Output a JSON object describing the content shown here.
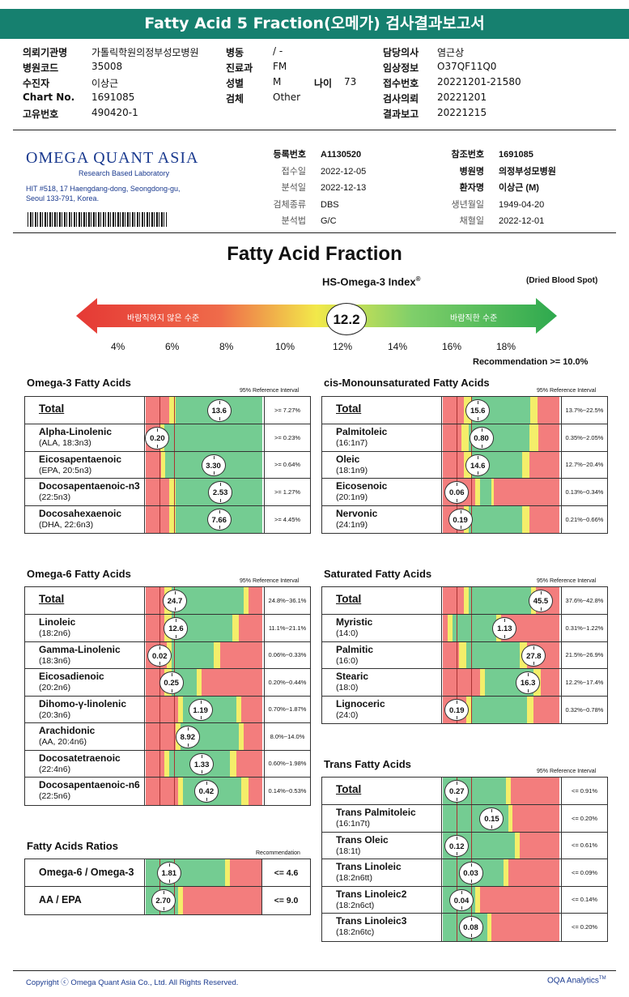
{
  "title": "Fatty Acid 5 Fraction(오메가) 검사결과보고서",
  "header": [
    {
      "k": "의뢰기관명",
      "v": "가톨릭학원의정부성모병원",
      "k2": "병동",
      "v2": "/ -",
      "k3": "담당의사",
      "v3": "염근상"
    },
    {
      "k": "병원코드",
      "v": "35008",
      "k2": "진료과",
      "v2": "FM",
      "k3": "임상정보",
      "v3": "O37QF11Q0"
    },
    {
      "k": "수진자",
      "v": "이상근",
      "k2": "성별",
      "v2": "M",
      "k2b": "나이",
      "v2b": "73",
      "k3": "접수번호",
      "v3": "20221201-21580"
    },
    {
      "k": "Chart No.",
      "v": "1691085",
      "k2": "검체",
      "v2": "Other",
      "k3": "검사의뢰",
      "v3": "20221201"
    },
    {
      "k": "고유번호",
      "v": "490420-1",
      "k2": "",
      "v2": "",
      "k3": "결과보고",
      "v3": "20221215"
    }
  ],
  "lab": {
    "logo": "OMEGA QUANT ASIA",
    "sub": "Research Based Laboratory",
    "addr1": "HIT #518, 17 Haengdang-dong, Seongdong-gu,",
    "addr2": "Seoul 133-791, Korea.",
    "mid": [
      {
        "k": "등록번호",
        "v": "A1130520"
      },
      {
        "k": "접수일",
        "v": "2022-12-05"
      },
      {
        "k": "분석일",
        "v": "2022-12-13"
      },
      {
        "k": "검체종류",
        "v": "DBS"
      },
      {
        "k": "분석법",
        "v": "G/C"
      }
    ],
    "right": [
      {
        "k": "참조번호",
        "v": "1691085"
      },
      {
        "k": "병원명",
        "v": "의정부성모병원"
      },
      {
        "k": "환자명",
        "v": "이상근 (M)"
      },
      {
        "k": "생년월일",
        "v": "1949-04-20"
      },
      {
        "k": "채혈일",
        "v": "2022-12-01"
      }
    ]
  },
  "main_title": "Fatty Acid Fraction",
  "index": {
    "label": "HS-Omega-3 Index",
    "reg": "®",
    "sample": "(Dried Blood Spot)",
    "value": "12.2",
    "bad": "바람직하지 않은 수준",
    "good": "바람직한 수준",
    "ticks": [
      "4%",
      "6%",
      "8%",
      "10%",
      "12%",
      "14%",
      "16%",
      "18%"
    ],
    "rec": "Recommendation  >= 10.0%"
  },
  "ref_label": "95% Reference Interval",
  "rec_label": "Recommendation",
  "panels": [
    {
      "title": "Omega-3 Fatty Acids",
      "rows": [
        {
          "n": "Total",
          "s": "",
          "v": "13.6",
          "r": ">= 7.27%",
          "pos": 0.63,
          "z": [
            [
              "r",
              0,
              0.2
            ],
            [
              "y",
              0.2,
              0.26
            ],
            [
              "g",
              0.26,
              1
            ]
          ]
        },
        {
          "n": "Alpha-Linolenic",
          "s": "(ALA, 18:3n3)",
          "v": "0.20",
          "r": ">= 0.23%",
          "pos": 0.1,
          "z": [
            [
              "r",
              0,
              0.12
            ],
            [
              "y",
              0.12,
              0.16
            ],
            [
              "g",
              0.16,
              1
            ]
          ]
        },
        {
          "n": "Eicosapentaenoic",
          "s": "(EPA, 20:5n3)",
          "v": "3.30",
          "r": ">= 0.64%",
          "pos": 0.58,
          "z": [
            [
              "r",
              0,
              0.13
            ],
            [
              "y",
              0.13,
              0.17
            ],
            [
              "g",
              0.17,
              1
            ]
          ]
        },
        {
          "n": "Docosapentaenoic-n3",
          "s": "(22:5n3)",
          "v": "2.53",
          "r": ">= 1.27%",
          "pos": 0.64,
          "z": [
            [
              "r",
              0,
              0.2
            ],
            [
              "y",
              0.2,
              0.26
            ],
            [
              "g",
              0.26,
              1
            ]
          ]
        },
        {
          "n": "Docosahexaenoic",
          "s": "(DHA, 22:6n3)",
          "v": "7.66",
          "r": ">= 4.45%",
          "pos": 0.63,
          "z": [
            [
              "r",
              0,
              0.2
            ],
            [
              "y",
              0.2,
              0.26
            ],
            [
              "g",
              0.26,
              1
            ]
          ]
        }
      ]
    },
    {
      "title": "cis-Monounsaturated Fatty Acids",
      "rows": [
        {
          "n": "Total",
          "s": "",
          "v": "15.6",
          "r": "13.7%~22.5%",
          "pos": 0.3,
          "z": [
            [
              "r",
              0,
              0.18
            ],
            [
              "y",
              0.18,
              0.24
            ],
            [
              "g",
              0.24,
              0.75
            ],
            [
              "y",
              0.75,
              0.81
            ],
            [
              "r",
              0.81,
              1
            ]
          ]
        },
        {
          "n": "Palmitoleic",
          "s": "(16:1n7)",
          "v": "0.80",
          "r": "0.35%~2.05%",
          "pos": 0.33,
          "z": [
            [
              "r",
              0,
              0.16
            ],
            [
              "y",
              0.16,
              0.22
            ],
            [
              "g",
              0.22,
              0.74
            ],
            [
              "y",
              0.74,
              0.82
            ],
            [
              "r",
              0.82,
              1
            ]
          ]
        },
        {
          "n": "Oleic",
          "s": "(18:1n9)",
          "v": "14.6",
          "r": "12.7%~20.4%",
          "pos": 0.3,
          "z": [
            [
              "r",
              0,
              0.18
            ],
            [
              "y",
              0.18,
              0.24
            ],
            [
              "g",
              0.24,
              0.68
            ],
            [
              "y",
              0.68,
              0.74
            ],
            [
              "r",
              0.74,
              1
            ]
          ]
        },
        {
          "n": "Eicosenoic",
          "s": "(20:1n9)",
          "v": "0.06",
          "r": "0.13%~0.34%",
          "pos": 0.12,
          "z": [
            [
              "r",
              0,
              0.28
            ],
            [
              "y",
              0.28,
              0.32
            ],
            [
              "g",
              0.32,
              0.42
            ],
            [
              "y",
              0.42,
              0.44
            ],
            [
              "r",
              0.44,
              1
            ]
          ]
        },
        {
          "n": "Nervonic",
          "s": "(24:1n9)",
          "v": "0.19",
          "r": "0.21%~0.66%",
          "pos": 0.15,
          "z": [
            [
              "r",
              0,
              0.18
            ],
            [
              "y",
              0.18,
              0.22
            ],
            [
              "g",
              0.22,
              0.68
            ],
            [
              "y",
              0.68,
              0.74
            ],
            [
              "r",
              0.74,
              1
            ]
          ]
        }
      ]
    },
    {
      "title": "Omega-6 Fatty Acids",
      "rows": [
        {
          "n": "Total",
          "s": "",
          "v": "24.7",
          "r": "24.8%~36.1%",
          "pos": 0.25,
          "z": [
            [
              "r",
              0,
              0.16
            ],
            [
              "y",
              0.16,
              0.22
            ],
            [
              "g",
              0.22,
              0.84
            ],
            [
              "y",
              0.84,
              0.88
            ],
            [
              "r",
              0.88,
              1
            ]
          ]
        },
        {
          "n": "Linoleic",
          "s": "(18:2n6)",
          "v": "12.6",
          "r": "11.1%~21.1%",
          "pos": 0.26,
          "z": [
            [
              "r",
              0,
              0.16
            ],
            [
              "y",
              0.16,
              0.22
            ],
            [
              "g",
              0.22,
              0.74
            ],
            [
              "y",
              0.74,
              0.8
            ],
            [
              "r",
              0.8,
              1
            ]
          ]
        },
        {
          "n": "Gamma-Linolenic",
          "s": "(18:3n6)",
          "v": "0.02",
          "r": "0.06%~0.33%",
          "pos": 0.12,
          "z": [
            [
              "r",
              0,
              0.18
            ],
            [
              "y",
              0.18,
              0.22
            ],
            [
              "g",
              0.22,
              0.58
            ],
            [
              "y",
              0.58,
              0.64
            ],
            [
              "r",
              0.64,
              1
            ]
          ]
        },
        {
          "n": "Eicosadienoic",
          "s": "(20:2n6)",
          "v": "0.25",
          "r": "0.20%~0.44%",
          "pos": 0.22,
          "z": [
            [
              "r",
              0,
              0.16
            ],
            [
              "y",
              0.16,
              0.22
            ],
            [
              "g",
              0.22,
              0.44
            ],
            [
              "y",
              0.44,
              0.48
            ],
            [
              "r",
              0.48,
              1
            ]
          ]
        },
        {
          "n": "Dihomo-γ-linolenic",
          "s": "(20:3n6)",
          "v": "1.19",
          "r": "0.70%~1.87%",
          "pos": 0.47,
          "z": [
            [
              "r",
              0,
              0.28
            ],
            [
              "y",
              0.28,
              0.32
            ],
            [
              "g",
              0.32,
              0.78
            ],
            [
              "y",
              0.78,
              0.82
            ],
            [
              "r",
              0.82,
              1
            ]
          ]
        },
        {
          "n": "Arachidonic",
          "s": "(AA, 20:4n6)",
          "v": "8.92",
          "r": "8.0%~14.0%",
          "pos": 0.36,
          "z": [
            [
              "r",
              0,
              0.26
            ],
            [
              "y",
              0.26,
              0.3
            ],
            [
              "g",
              0.3,
              0.8
            ],
            [
              "y",
              0.8,
              0.84
            ],
            [
              "r",
              0.84,
              1
            ]
          ]
        },
        {
          "n": "Docosatetraenoic",
          "s": "(22:4n6)",
          "v": "1.33",
          "r": "0.60%~1.98%",
          "pos": 0.48,
          "z": [
            [
              "r",
              0,
              0.16
            ],
            [
              "y",
              0.16,
              0.2
            ],
            [
              "g",
              0.2,
              0.72
            ],
            [
              "y",
              0.72,
              0.78
            ],
            [
              "r",
              0.78,
              1
            ]
          ]
        },
        {
          "n": "Docosapentaenoic-n6",
          "s": "(22:5n6)",
          "v": "0.42",
          "r": "0.14%~0.53%",
          "pos": 0.52,
          "z": [
            [
              "r",
              0,
              0.28
            ],
            [
              "y",
              0.28,
              0.32
            ],
            [
              "g",
              0.32,
              0.82
            ],
            [
              "y",
              0.82,
              0.88
            ],
            [
              "r",
              0.88,
              1
            ]
          ]
        }
      ]
    },
    {
      "title": "Saturated Fatty Acids",
      "rows": [
        {
          "n": "Total",
          "s": "",
          "v": "45.5",
          "r": "37.6%~42.8%",
          "pos": 0.84,
          "z": [
            [
              "r",
              0,
              0.18
            ],
            [
              "y",
              0.18,
              0.22
            ],
            [
              "g",
              0.22,
              0.76
            ],
            [
              "y",
              0.76,
              0.8
            ],
            [
              "r",
              0.8,
              1
            ]
          ]
        },
        {
          "n": "Myristic",
          "s": "(14:0)",
          "v": "1.13",
          "r": "0.31%~1.22%",
          "pos": 0.53,
          "z": [
            [
              "r",
              0,
              0.04
            ],
            [
              "y",
              0.04,
              0.08
            ],
            [
              "g",
              0.08,
              0.46
            ],
            [
              "y",
              0.46,
              0.5
            ],
            [
              "r",
              0.5,
              1
            ]
          ]
        },
        {
          "n": "Palmitic",
          "s": "(16:0)",
          "v": "27.8",
          "r": "21.5%~26.9%",
          "pos": 0.78,
          "z": [
            [
              "r",
              0,
              0.14
            ],
            [
              "y",
              0.14,
              0.2
            ],
            [
              "g",
              0.2,
              0.66
            ],
            [
              "y",
              0.66,
              0.72
            ],
            [
              "r",
              0.72,
              1
            ]
          ]
        },
        {
          "n": "Stearic",
          "s": "(18:0)",
          "v": "16.3",
          "r": "12.2%~17.4%",
          "pos": 0.73,
          "z": [
            [
              "r",
              0,
              0.32
            ],
            [
              "y",
              0.32,
              0.36
            ],
            [
              "g",
              0.36,
              0.78
            ],
            [
              "y",
              0.78,
              0.84
            ],
            [
              "r",
              0.84,
              1
            ]
          ]
        },
        {
          "n": "Lignoceric",
          "s": "(24:0)",
          "v": "0.19",
          "r": "0.32%~0.78%",
          "pos": 0.12,
          "z": [
            [
              "r",
              0,
              0.2
            ],
            [
              "y",
              0.2,
              0.24
            ],
            [
              "g",
              0.24,
              0.72
            ],
            [
              "y",
              0.72,
              0.78
            ],
            [
              "r",
              0.78,
              1
            ]
          ]
        }
      ]
    },
    {
      "title": "Trans Fatty Acids",
      "rows": [
        {
          "n": "Total",
          "s": "",
          "v": "0.27",
          "r": "<= 0.91%",
          "pos": 0.12,
          "z": [
            [
              "g",
              0,
              0.54
            ],
            [
              "y",
              0.54,
              0.58
            ],
            [
              "r",
              0.58,
              1
            ]
          ]
        },
        {
          "n": "Trans Palmitoleic",
          "s": "(16:1n7t)",
          "v": "0.15",
          "r": "<= 0.20%",
          "pos": 0.42,
          "z": [
            [
              "g",
              0,
              0.56
            ],
            [
              "y",
              0.56,
              0.6
            ],
            [
              "r",
              0.6,
              1
            ]
          ]
        },
        {
          "n": "Trans Oleic",
          "s": "(18:1t)",
          "v": "0.12",
          "r": "<= 0.61%",
          "pos": 0.12,
          "z": [
            [
              "g",
              0,
              0.62
            ],
            [
              "y",
              0.62,
              0.66
            ],
            [
              "r",
              0.66,
              1
            ]
          ]
        },
        {
          "n": "Trans Linoleic",
          "s": "(18:2n6tt)",
          "v": "0.03",
          "r": "<= 0.09%",
          "pos": 0.24,
          "z": [
            [
              "g",
              0,
              0.52
            ],
            [
              "y",
              0.52,
              0.56
            ],
            [
              "r",
              0.56,
              1
            ]
          ]
        },
        {
          "n": "Trans Linoleic2",
          "s": "(18:2n6ct)",
          "v": "0.04",
          "r": "<= 0.14%",
          "pos": 0.16,
          "z": [
            [
              "g",
              0,
              0.28
            ],
            [
              "y",
              0.28,
              0.32
            ],
            [
              "r",
              0.32,
              1
            ]
          ]
        },
        {
          "n": "Trans Linoleic3",
          "s": "(18:2n6tc)",
          "v": "0.08",
          "r": "<= 0.20%",
          "pos": 0.24,
          "z": [
            [
              "g",
              0,
              0.38
            ],
            [
              "y",
              0.38,
              0.42
            ],
            [
              "r",
              0.42,
              1
            ]
          ]
        }
      ]
    },
    {
      "title": "Fatty Acids Ratios",
      "rows": [
        {
          "n": "Omega-6 / Omega-3",
          "s": "",
          "v": "1.81",
          "r": "<= 4.6",
          "pos": 0.2,
          "z": [
            [
              "g",
              0,
              0.68
            ],
            [
              "y",
              0.68,
              0.72
            ],
            [
              "r",
              0.72,
              1
            ]
          ]
        },
        {
          "n": "AA / EPA",
          "s": "",
          "v": "2.70",
          "r": "<= 9.0",
          "pos": 0.15,
          "z": [
            [
              "g",
              0,
              0.28
            ],
            [
              "y",
              0.28,
              0.32
            ],
            [
              "r",
              0.32,
              1
            ]
          ]
        }
      ]
    }
  ],
  "footer": {
    "left": "Copyright ⓒ Omega Quant Asia Co., Ltd.  All Rights Reserved.",
    "right": "OQA Analytics",
    "tm": "TM"
  },
  "colors": {
    "g": "#74cc92",
    "y": "#f4ee6a",
    "r": "#f37d7d",
    "title": "#16806f"
  }
}
